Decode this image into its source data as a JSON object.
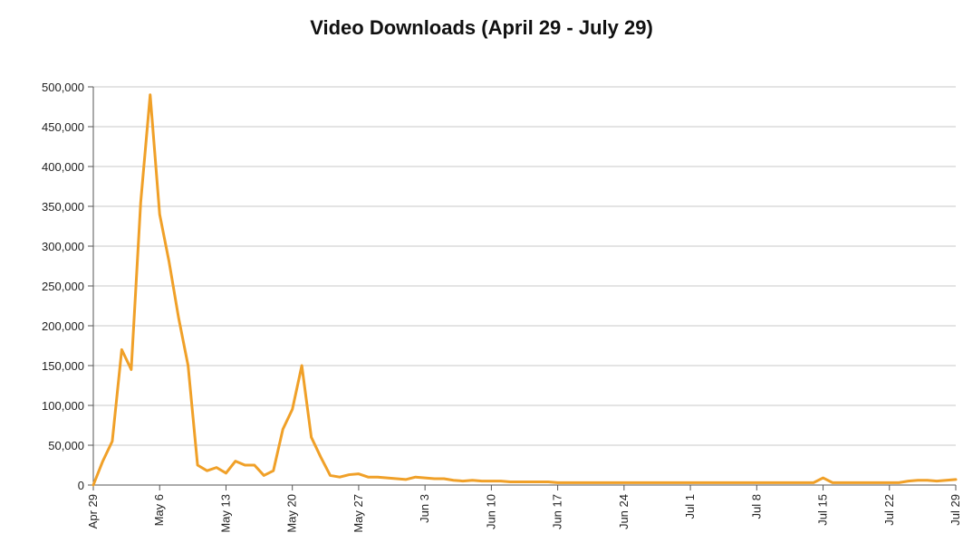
{
  "chart_data": {
    "type": "line",
    "title": "Video Downloads (April 29 - July 29)",
    "xlabel": "",
    "ylabel": "",
    "ylim": [
      0,
      500000
    ],
    "yticks": [
      "0",
      "50,000",
      "100,000",
      "150,000",
      "200,000",
      "250,000",
      "300,000",
      "350,000",
      "400,000",
      "450,000",
      "500,000"
    ],
    "xticks": [
      {
        "day": 0,
        "label": "Apr 29"
      },
      {
        "day": 7,
        "label": "May 6"
      },
      {
        "day": 14,
        "label": "May 13"
      },
      {
        "day": 21,
        "label": "May 20"
      },
      {
        "day": 28,
        "label": "May 27"
      },
      {
        "day": 35,
        "label": "Jun 3"
      },
      {
        "day": 42,
        "label": "Jun 10"
      },
      {
        "day": 49,
        "label": "Jun 17"
      },
      {
        "day": 56,
        "label": "Jun 24"
      },
      {
        "day": 63,
        "label": "Jul 1"
      },
      {
        "day": 70,
        "label": "Jul 8"
      },
      {
        "day": 77,
        "label": "Jul 15"
      },
      {
        "day": 84,
        "label": "Jul 22"
      },
      {
        "day": 91,
        "label": "Jul 29"
      }
    ],
    "grid": true,
    "color": "#F0A028",
    "series": [
      {
        "name": "",
        "values": [
          0,
          30000,
          55000,
          170000,
          145000,
          355000,
          490000,
          340000,
          280000,
          210000,
          150000,
          25000,
          18000,
          22000,
          15000,
          30000,
          25000,
          25000,
          12000,
          18000,
          70000,
          95000,
          150000,
          60000,
          35000,
          12000,
          10000,
          13000,
          14000,
          10000,
          10000,
          9000,
          8000,
          7000,
          10000,
          9000,
          8000,
          8000,
          6000,
          5000,
          6000,
          5000,
          5000,
          5000,
          4000,
          4000,
          4000,
          4000,
          4000,
          3000,
          3000,
          3000,
          3000,
          3000,
          3000,
          3000,
          3000,
          3000,
          3000,
          3000,
          3000,
          3000,
          3000,
          3000,
          3000,
          3000,
          3000,
          3000,
          3000,
          3000,
          3000,
          3000,
          3000,
          3000,
          3000,
          3000,
          3000,
          9000,
          3000,
          3000,
          3000,
          3000,
          3000,
          3000,
          3000,
          3000,
          5000,
          6000,
          6000,
          5000,
          6000,
          7000
        ]
      }
    ]
  }
}
